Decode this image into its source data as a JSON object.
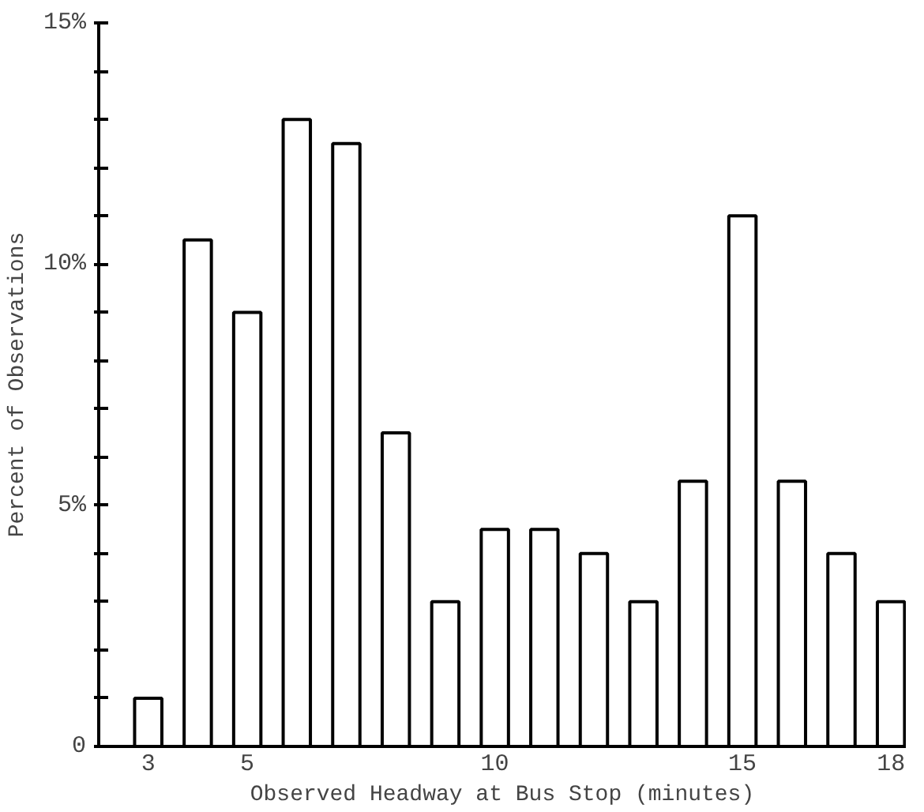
{
  "chart_data": {
    "type": "bar",
    "xlabel": "Observed Headway at Bus Stop (minutes)",
    "ylabel": "Percent of Observations",
    "x": [
      3,
      4,
      5,
      6,
      7,
      8,
      9,
      10,
      11,
      12,
      13,
      14,
      15,
      16,
      17,
      18
    ],
    "values": [
      1,
      10.5,
      9,
      13,
      12.5,
      6.5,
      3,
      4.5,
      4.5,
      4,
      3,
      5.5,
      11,
      5.5,
      4,
      3
    ],
    "color": "#000000",
    "xlim": [
      2,
      18.3
    ],
    "xticks": [
      3,
      5,
      10,
      15,
      18
    ],
    "ylim": [
      0,
      15
    ],
    "yticks": [
      {
        "value": 0,
        "label": "0"
      },
      {
        "value": 1,
        "label": null
      },
      {
        "value": 2,
        "label": null
      },
      {
        "value": 3,
        "label": null
      },
      {
        "value": 4,
        "label": null
      },
      {
        "value": 5,
        "label": "5%"
      },
      {
        "value": 6,
        "label": null
      },
      {
        "value": 7,
        "label": null
      },
      {
        "value": 8,
        "label": null
      },
      {
        "value": 9,
        "label": null
      },
      {
        "value": 10,
        "label": "10%"
      },
      {
        "value": 11,
        "label": null
      },
      {
        "value": 12,
        "label": null
      },
      {
        "value": 13,
        "label": null
      },
      {
        "value": 14,
        "label": null
      },
      {
        "value": 15,
        "label": "15%"
      }
    ],
    "grid": false
  }
}
